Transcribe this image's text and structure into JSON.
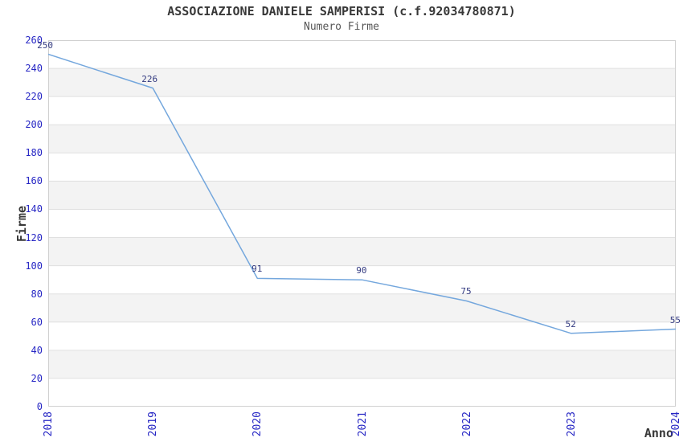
{
  "chart_data": {
    "type": "line",
    "title": "ASSOCIAZIONE DANIELE SAMPERISI (c.f.92034780871)",
    "subtitle": "Numero Firme",
    "xlabel": "Anno",
    "ylabel": "Firme",
    "categories": [
      "2018",
      "2019",
      "2020",
      "2021",
      "2022",
      "2023",
      "2024"
    ],
    "values": [
      250,
      226,
      91,
      90,
      75,
      52,
      55
    ],
    "point_labels": [
      "250",
      "226",
      "91",
      "90",
      "75",
      "52",
      "55"
    ],
    "ylim": [
      0,
      260
    ],
    "y_tick_step": 20,
    "y_ticks": [
      0,
      20,
      40,
      60,
      80,
      100,
      120,
      140,
      160,
      180,
      200,
      220,
      240,
      260
    ],
    "grid": "horizontal gridlines every 20 with alternating shaded bands, no vertical gridlines",
    "legend_position": "none",
    "markers": "none",
    "colors": {
      "line": "#74a7dd",
      "tick_label": "#2626c4",
      "point_label": "#333a80",
      "band": "#f3f3f3",
      "gridline": "#e0e0e0",
      "border": "#d0d0d0",
      "title": "#383838",
      "subtitle": "#555555",
      "axis_title": "#383838",
      "background": "#ffffff"
    }
  }
}
